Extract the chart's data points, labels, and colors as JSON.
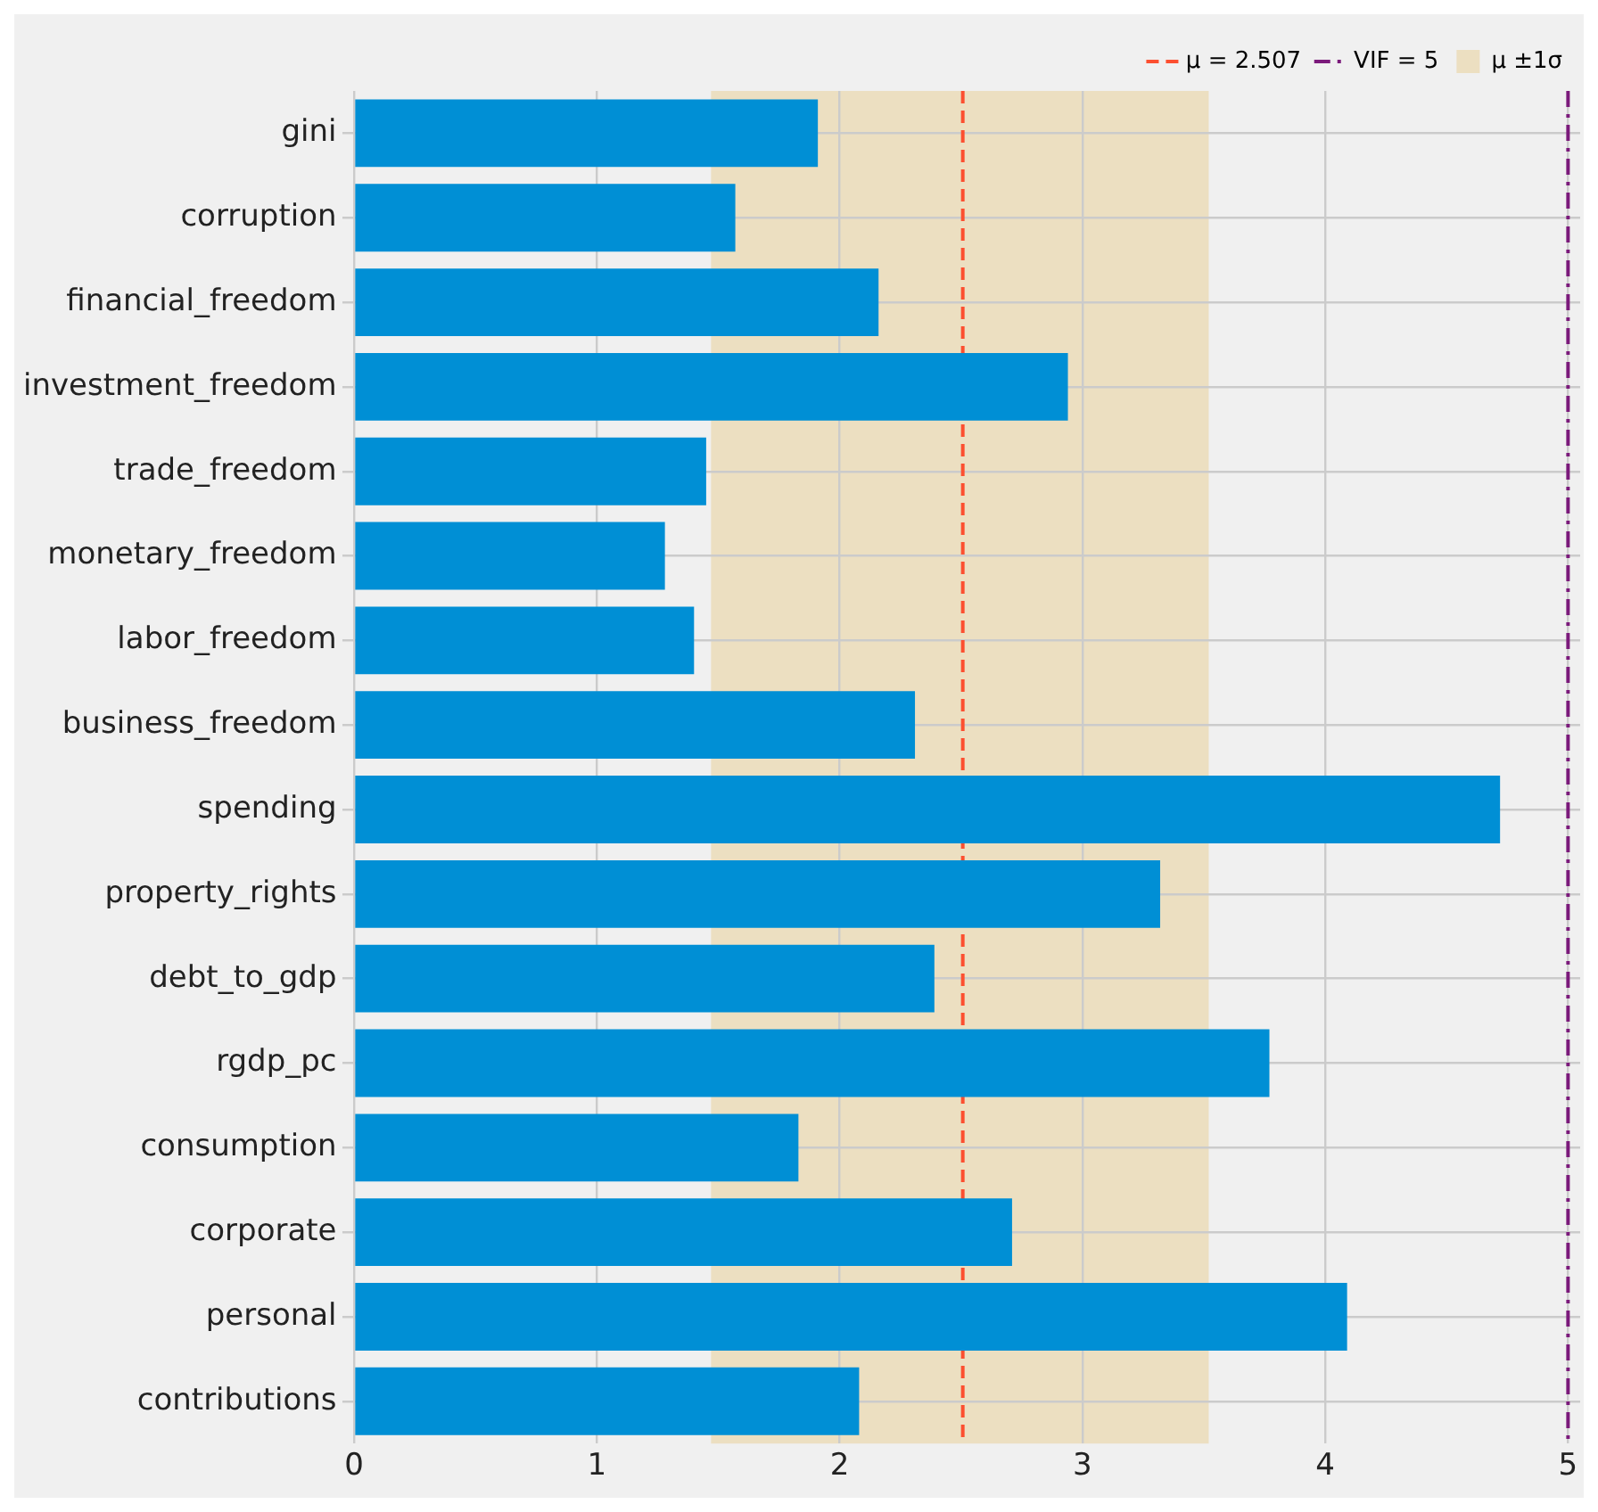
{
  "chart_data": {
    "type": "bar",
    "orientation": "horizontal",
    "categories": [
      "gini",
      "corruption",
      "financial_freedom",
      "investment_freedom",
      "trade_freedom",
      "monetary_freedom",
      "labor_freedom",
      "business_freedom",
      "spending",
      "property_rights",
      "debt_to_gdp",
      "rgdp_pc",
      "consumption",
      "corporate",
      "personal",
      "contributions"
    ],
    "values": [
      1.91,
      1.57,
      2.16,
      2.94,
      1.45,
      1.28,
      1.4,
      2.31,
      4.72,
      3.32,
      2.39,
      3.77,
      1.83,
      2.71,
      4.09,
      2.08
    ],
    "color": "#008fd5",
    "xlim": [
      -0.05,
      5.05
    ],
    "xticks": [
      0,
      1,
      2,
      3,
      4,
      5
    ],
    "ref_lines": [
      {
        "axis": "x",
        "value": 2.507,
        "label": "μ = 2.507",
        "color": "#fc4f30",
        "line_style": "dashed"
      },
      {
        "axis": "x",
        "value": 5,
        "label": "VIF = 5",
        "color": "#7b1a7b",
        "line_style": "dashdot"
      }
    ],
    "bands": [
      {
        "axis": "x",
        "from": 1.47,
        "to": 3.52,
        "label": "μ ±1σ",
        "color": "#ecdfc1"
      }
    ],
    "grid": true,
    "legend": "top right"
  }
}
